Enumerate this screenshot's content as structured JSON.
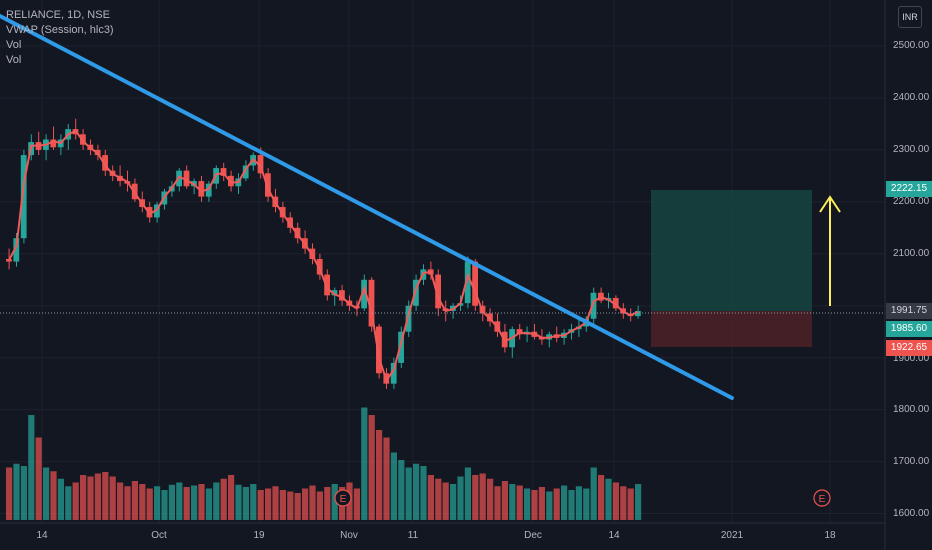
{
  "legend": {
    "symbol": "RELIANCE, 1D, NSE",
    "vwap": "VWAP (Session, hlc3)",
    "vol1": "Vol",
    "vol2": "Vol"
  },
  "currency_button": "INR",
  "colors": {
    "background": "#131722",
    "up": "#26a69a",
    "down": "#ef5350",
    "vwap": "#f05a5a",
    "trendline": "#2f9ae8",
    "arrow": "#ffee58",
    "target_zone": "#16443f",
    "stop_zone": "#4a2027"
  },
  "price_axis": [
    "2500.00",
    "2400.00",
    "2300.00",
    "2200.00",
    "2100.00",
    "1900.00",
    "1800.00",
    "1700.00",
    "1600.00"
  ],
  "time_axis": [
    "14",
    "Oct",
    "19",
    "Nov",
    "11",
    "Dec",
    "14",
    "2021",
    "18"
  ],
  "price_tags": {
    "target": "2222.15",
    "last": "1991.75",
    "current": "1985.60",
    "stop": "1922.65"
  },
  "earnings_marker": "E",
  "chart_data": {
    "type": "candlestick",
    "title": "RELIANCE, 1D, NSE",
    "ylim": [
      1590,
      2560
    ],
    "candles": [
      [
        2090,
        2110,
        2070,
        2085
      ],
      [
        2085,
        2140,
        2075,
        2130
      ],
      [
        2130,
        2300,
        2120,
        2290
      ],
      [
        2290,
        2330,
        2280,
        2315
      ],
      [
        2315,
        2335,
        2290,
        2300
      ],
      [
        2300,
        2330,
        2280,
        2320
      ],
      [
        2320,
        2345,
        2300,
        2305
      ],
      [
        2305,
        2330,
        2290,
        2320
      ],
      [
        2320,
        2350,
        2300,
        2340
      ],
      [
        2340,
        2360,
        2320,
        2330
      ],
      [
        2330,
        2340,
        2300,
        2310
      ],
      [
        2310,
        2320,
        2290,
        2300
      ],
      [
        2300,
        2310,
        2280,
        2290
      ],
      [
        2290,
        2300,
        2250,
        2260
      ],
      [
        2260,
        2270,
        2240,
        2250
      ],
      [
        2250,
        2270,
        2230,
        2240
      ],
      [
        2240,
        2260,
        2220,
        2235
      ],
      [
        2235,
        2245,
        2200,
        2205
      ],
      [
        2205,
        2220,
        2180,
        2190
      ],
      [
        2190,
        2200,
        2160,
        2170
      ],
      [
        2170,
        2200,
        2160,
        2195
      ],
      [
        2195,
        2225,
        2185,
        2220
      ],
      [
        2220,
        2240,
        2210,
        2230
      ],
      [
        2230,
        2265,
        2220,
        2260
      ],
      [
        2260,
        2270,
        2225,
        2230
      ],
      [
        2230,
        2245,
        2215,
        2240
      ],
      [
        2240,
        2250,
        2200,
        2210
      ],
      [
        2210,
        2240,
        2200,
        2235
      ],
      [
        2235,
        2270,
        2225,
        2265
      ],
      [
        2265,
        2275,
        2240,
        2250
      ],
      [
        2250,
        2260,
        2220,
        2230
      ],
      [
        2230,
        2255,
        2215,
        2245
      ],
      [
        2245,
        2280,
        2240,
        2270
      ],
      [
        2270,
        2295,
        2260,
        2290
      ],
      [
        2290,
        2305,
        2245,
        2255
      ],
      [
        2255,
        2265,
        2200,
        2210
      ],
      [
        2210,
        2225,
        2180,
        2190
      ],
      [
        2190,
        2200,
        2160,
        2170
      ],
      [
        2170,
        2180,
        2140,
        2150
      ],
      [
        2150,
        2160,
        2120,
        2130
      ],
      [
        2130,
        2145,
        2100,
        2110
      ],
      [
        2110,
        2120,
        2080,
        2090
      ],
      [
        2090,
        2100,
        2050,
        2060
      ],
      [
        2060,
        2070,
        2010,
        2020
      ],
      [
        2020,
        2035,
        2000,
        2030
      ],
      [
        2030,
        2040,
        2000,
        2010
      ],
      [
        2010,
        2020,
        1990,
        2000
      ],
      [
        2000,
        2010,
        1980,
        1995
      ],
      [
        1995,
        2060,
        1990,
        2050
      ],
      [
        2050,
        2055,
        1950,
        1960
      ],
      [
        1960,
        1965,
        1860,
        1870
      ],
      [
        1870,
        1880,
        1840,
        1850
      ],
      [
        1850,
        1900,
        1840,
        1890
      ],
      [
        1890,
        1960,
        1880,
        1950
      ],
      [
        1950,
        2010,
        1940,
        2000
      ],
      [
        2000,
        2060,
        1990,
        2050
      ],
      [
        2050,
        2080,
        2040,
        2070
      ],
      [
        2070,
        2085,
        2050,
        2060
      ],
      [
        2060,
        2070,
        1980,
        1995
      ],
      [
        1995,
        2010,
        1970,
        1990
      ],
      [
        1990,
        2005,
        1975,
        2000
      ],
      [
        2000,
        2020,
        1990,
        2005
      ],
      [
        2005,
        2095,
        1995,
        2085
      ],
      [
        2085,
        2090,
        1990,
        2000
      ],
      [
        2000,
        2010,
        1970,
        1985
      ],
      [
        1985,
        1995,
        1960,
        1970
      ],
      [
        1970,
        1985,
        1940,
        1950
      ],
      [
        1950,
        1965,
        1910,
        1920
      ],
      [
        1920,
        1960,
        1900,
        1955
      ],
      [
        1955,
        1965,
        1935,
        1945
      ],
      [
        1945,
        1960,
        1930,
        1950
      ],
      [
        1950,
        1965,
        1935,
        1940
      ],
      [
        1940,
        1955,
        1925,
        1935
      ],
      [
        1935,
        1950,
        1920,
        1945
      ],
      [
        1945,
        1960,
        1930,
        1938
      ],
      [
        1938,
        1955,
        1925,
        1948
      ],
      [
        1948,
        1965,
        1935,
        1955
      ],
      [
        1955,
        1975,
        1940,
        1960
      ],
      [
        1960,
        1980,
        1950,
        1975
      ],
      [
        1975,
        2035,
        1965,
        2025
      ],
      [
        2025,
        2035,
        2005,
        2010
      ],
      [
        2010,
        2025,
        1995,
        2015
      ],
      [
        2015,
        2020,
        1990,
        1995
      ],
      [
        1995,
        2005,
        1975,
        1985
      ],
      [
        1985,
        1995,
        1970,
        1980
      ],
      [
        1980,
        2000,
        1975,
        1990
      ]
    ],
    "volume": [
      70,
      75,
      72,
      140,
      110,
      70,
      65,
      55,
      45,
      50,
      60,
      58,
      62,
      64,
      58,
      50,
      45,
      52,
      48,
      42,
      45,
      40,
      47,
      50,
      44,
      46,
      48,
      42,
      50,
      55,
      60,
      47,
      44,
      48,
      40,
      42,
      45,
      40,
      38,
      36,
      42,
      46,
      38,
      44,
      48,
      44,
      50,
      42,
      150,
      140,
      120,
      110,
      90,
      80,
      70,
      75,
      72,
      60,
      55,
      50,
      48,
      58,
      70,
      60,
      62,
      55,
      45,
      52,
      48,
      46,
      42,
      40,
      44,
      38,
      42,
      46,
      40,
      45,
      42,
      70,
      60,
      55,
      50,
      45,
      42,
      48
    ],
    "vwap_note": "VWAP (Session, hlc3)",
    "annotations": {
      "target": 2222.15,
      "entry": 1991.75,
      "stop": 1922.65
    }
  }
}
